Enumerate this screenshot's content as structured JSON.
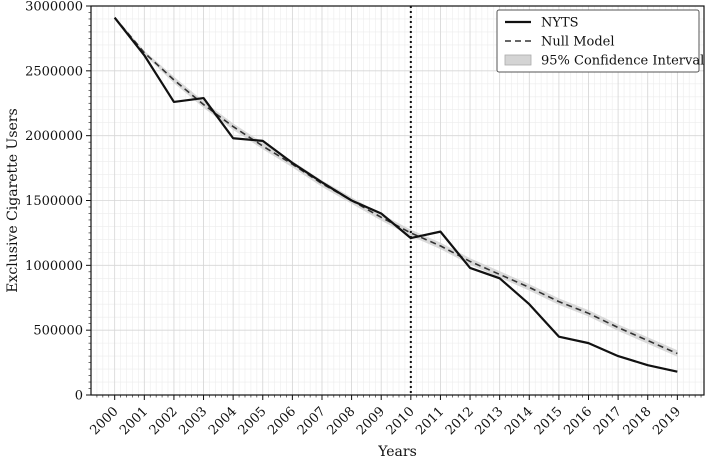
{
  "chart_data": {
    "type": "line",
    "xlabel": "Years",
    "ylabel": "Exclusive Cigarette Users",
    "x": [
      "2000",
      "2001",
      "2002",
      "2003",
      "2004",
      "2005",
      "2006",
      "2007",
      "2008",
      "2009",
      "2010",
      "2011",
      "2012",
      "2013",
      "2014",
      "2015",
      "2016",
      "2017",
      "2018",
      "2019"
    ],
    "ylim": [
      0,
      3000000
    ],
    "xlim": [
      1999.2,
      2019.9
    ],
    "yticks": [
      0,
      500000,
      1000000,
      1500000,
      2000000,
      2500000,
      3000000
    ],
    "grid": true,
    "legend_position": "top-right",
    "vertical_line_x": "2010",
    "series": [
      {
        "name": "NYTS",
        "style": "solid",
        "color": "#111111",
        "values": [
          2910000,
          2620000,
          2260000,
          2290000,
          1980000,
          1960000,
          1790000,
          1640000,
          1500000,
          1400000,
          1210000,
          1260000,
          980000,
          900000,
          700000,
          450000,
          400000,
          300000,
          230000,
          180000
        ]
      },
      {
        "name": "Null Model",
        "style": "dashed",
        "color": "#333333",
        "values": [
          2910000,
          2640000,
          2430000,
          2240000,
          2070000,
          1920000,
          1780000,
          1630000,
          1500000,
          1370000,
          1250000,
          1150000,
          1030000,
          930000,
          830000,
          720000,
          630000,
          520000,
          420000,
          320000
        ]
      }
    ],
    "confidence_interval": {
      "name": "95% Confidence Interval",
      "color": "#d4d4d4",
      "lower": [
        2900000,
        2625000,
        2405000,
        2215000,
        2045000,
        1895000,
        1755000,
        1605000,
        1475000,
        1345000,
        1225000,
        1125000,
        1005000,
        905000,
        805000,
        695000,
        605000,
        495000,
        395000,
        295000
      ],
      "upper": [
        2920000,
        2655000,
        2455000,
        2265000,
        2095000,
        1945000,
        1805000,
        1655000,
        1525000,
        1395000,
        1275000,
        1175000,
        1055000,
        955000,
        855000,
        745000,
        655000,
        545000,
        445000,
        345000
      ]
    }
  }
}
